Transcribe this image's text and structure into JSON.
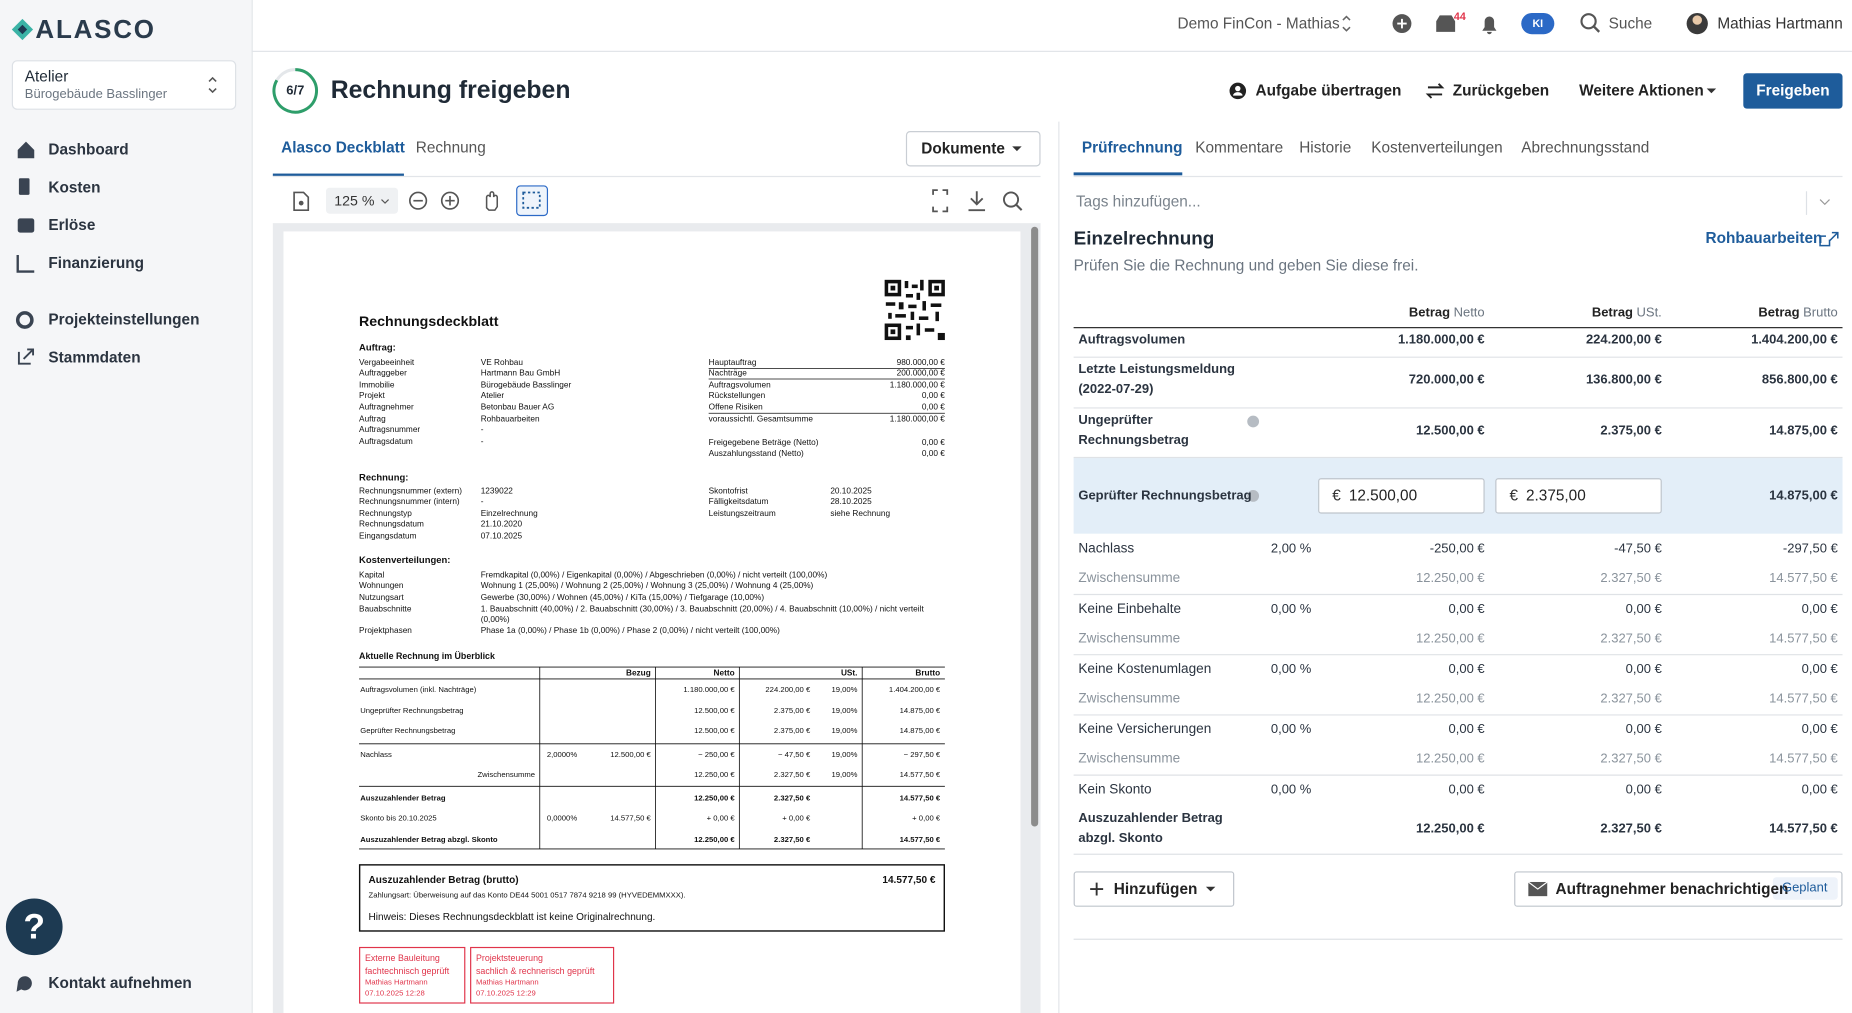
{
  "sidebar": {
    "logo": "ALASCO",
    "project": "Atelier",
    "property": "Bürogebäude Basslinger",
    "nav": [
      "Dashboard",
      "Kosten",
      "Erlöse",
      "Finanzierung",
      "Projekteinstellungen",
      "Stammdaten"
    ],
    "help": "?",
    "contact": "Kontakt aufnehmen"
  },
  "topbar": {
    "workspace": "Demo FinCon - Mathias",
    "notifications": "44",
    "ai": "KI",
    "search": "Suche",
    "user": "Mathias Hartmann"
  },
  "header": {
    "step": "6/7",
    "title": "Rechnung freigeben",
    "actions": [
      "Aufgabe übertragen",
      "Zurückgeben",
      "Weitere Aktionen"
    ],
    "primary": "Freigeben"
  },
  "viewer": {
    "tabs": [
      "Alasco Deckblatt",
      "Rechnung"
    ],
    "documents": "Dokumente",
    "zoom": "125 %"
  },
  "document": {
    "title": "Rechnungsdeckblatt",
    "order_heading": "Auftrag:",
    "order_left": [
      [
        "Vergabeeinheit",
        "VE Rohbau"
      ],
      [
        "Auftraggeber",
        "Hartmann Bau GmbH"
      ],
      [
        "Immobilie",
        "Bürogebäude Basslinger"
      ],
      [
        "Projekt",
        "Atelier"
      ],
      [
        "Auftragnehmer",
        "Betonbau Bauer AG"
      ],
      [
        "Auftrag",
        "Rohbauarbeiten"
      ],
      [
        "Auftragsnummer",
        "-"
      ],
      [
        "Auftragsdatum",
        "-"
      ]
    ],
    "order_right": [
      [
        "Hauptauftrag",
        "980.000,00 €"
      ],
      [
        "Nachträge",
        "200.000,00 €"
      ],
      [
        "Auftragsvolumen",
        "1.180.000,00 €"
      ],
      [
        "Rückstellungen",
        "0,00 €"
      ],
      [
        "Offene Risiken",
        "0,00 €"
      ],
      [
        "voraussichtl. Gesamtsumme",
        "1.180.000,00 €"
      ]
    ],
    "order_payments": [
      [
        "Freigegebene Beträge (Netto)",
        "0,00 €"
      ],
      [
        "Auszahlungsstand (Netto)",
        "0,00 €"
      ]
    ],
    "invoice_heading": "Rechnung:",
    "invoice_left": [
      [
        "Rechnungsnummer (extern)",
        "1239022"
      ],
      [
        "Rechnungsnummer (intern)",
        "-"
      ],
      [
        "Rechnungstyp",
        "Einzelrechnung"
      ],
      [
        "Rechnungsdatum",
        "21.10.2020"
      ],
      [
        "Eingangsdatum",
        "07.10.2025"
      ]
    ],
    "invoice_right": [
      [
        "Skontofrist",
        "20.10.2025"
      ],
      [
        "Fälligkeitsdatum",
        "28.10.2025"
      ],
      [
        "Leistungszeitraum",
        "siehe Rechnung"
      ]
    ],
    "distribution_heading": "Kostenverteilungen:",
    "distribution": [
      [
        "Kapital",
        "Fremdkapital (0,00%) / Eigenkapital (0,00%) / Abgeschrieben (0,00%) / nicht verteilt (100,00%)"
      ],
      [
        "Wohnungen",
        "Wohnung 1 (25,00%) / Wohnung 2 (25,00%) / Wohnung 3 (25,00%) / Wohnung 4 (25,00%)"
      ],
      [
        "Nutzungsart",
        "Gewerbe (30,00%) / Wohnen (45,00%) / KiTa (15,00%) / Tiefgarage (10,00%)"
      ],
      [
        "Bauabschnitte",
        "1. Bauabschnitt (40,00%) / 2. Bauabschnitt (30,00%) / 3. Bauabschnitt (20,00%) / 4. Bauabschnitt (10,00%) / nicht verteilt (0,00%)"
      ],
      [
        "Projektphasen",
        "Phase 1a (0,00%) / Phase 1b (0,00%) / Phase 2 (0,00%) / nicht verteilt (100,00%)"
      ]
    ],
    "overview_heading": "Aktuelle Rechnung im Überblick",
    "overview_columns": [
      "Bezug",
      "Netto",
      "USt.",
      "Brutto"
    ],
    "overview_rows": [
      [
        "Auftragsvolumen (inkl. Nachträge)",
        null,
        null,
        "1.180.000,00 €",
        "224.200,00 €",
        "19,00%",
        "1.404.200,00 €"
      ],
      [
        "Ungeprüfter Rechnungsbetrag",
        null,
        null,
        "12.500,00 €",
        "2.375,00 €",
        "19,00%",
        "14.875,00 €"
      ],
      [
        "Geprüfter Rechnungsbetrag",
        null,
        null,
        "12.500,00 €",
        "2.375,00 €",
        "19,00%",
        "14.875,00 €"
      ],
      [
        "Nachlass",
        "2,0000%",
        "12.500,00 €",
        "− 250,00 €",
        "− 47,50 €",
        "19,00%",
        "− 297,50 €"
      ],
      [
        "Zwischensumme",
        null,
        null,
        "12.250,00 €",
        "2.327,50 €",
        "19,00%",
        "14.577,50 €"
      ],
      [
        "Auszuzahlender Betrag",
        null,
        null,
        "12.250,00 €",
        "2.327,50 €",
        null,
        "14.577,50 €"
      ],
      [
        "Skonto bis 20.10.2025",
        "0,0000%",
        "14.577,50 €",
        "+ 0,00 €",
        "+ 0,00 €",
        null,
        "+ 0,00 €"
      ],
      [
        "Auszuzahlender Betrag abzgl. Skonto",
        null,
        null,
        "12.250,00 €",
        "2.327,50 €",
        null,
        "14.577,50 €"
      ]
    ],
    "payout": {
      "label": "Auszuzahlender Betrag (brutto)",
      "amount": "14.577,50 €",
      "method": "Zahlungsart: Überweisung auf das Konto DE44 5001 0517 7874 9218 99 (HYVEDEMMXXX).",
      "note": "Hinweis: Dieses Rechnungsdeckblatt ist keine Originalrechnung."
    },
    "stamps": [
      {
        "title": "Externe Bauleitung",
        "check": "fachtechnisch geprüft",
        "name": "Mathias Hartmann",
        "date": "07.10.2025 12:28"
      },
      {
        "title": "Projektsteuerung",
        "check": "sachlich & rechnerisch geprüft",
        "name": "Mathias Hartmann",
        "date": "07.10.2025 12:29"
      }
    ]
  },
  "review": {
    "tabs": [
      "Prüfrechnung",
      "Kommentare",
      "Historie",
      "Kostenverteilungen",
      "Abrechnungsstand"
    ],
    "tags_placeholder": "Tags hinzufügen...",
    "heading": "Einzelrechnung",
    "contract_link": "Rohbauarbeiten",
    "description": "Prüfen Sie die Rechnung und geben Sie diese frei.",
    "columns": [
      [
        "Betrag",
        "Netto"
      ],
      [
        "Betrag",
        "USt."
      ],
      [
        "Betrag",
        "Brutto"
      ]
    ],
    "rows": [
      {
        "label": "Auftragsvolumen",
        "net": "1.180.000,00 €",
        "vat": "224.200,00 €",
        "gross": "1.404.200,00 €"
      },
      {
        "label": "Letzte Leistungsmeldung (2022-07-29)",
        "net": "720.000,00 €",
        "vat": "136.800,00 €",
        "gross": "856.800,00 €"
      },
      {
        "label": "Ungeprüfter Rechnungsbetrag",
        "net": "12.500,00 €",
        "vat": "2.375,00 €",
        "gross": "14.875,00 €"
      },
      {
        "label": "Geprüfter Rechnungsbetrag",
        "currency": "€",
        "net": "12.500,00",
        "vat": "2.375,00",
        "gross": "14.875,00 €"
      },
      {
        "label": "Nachlass",
        "rate": "2,00 %",
        "net": "-250,00 €",
        "vat": "-47,50 €",
        "gross": "-297,50 €"
      },
      {
        "label": "Zwischensumme",
        "net": "12.250,00 €",
        "vat": "2.327,50 €",
        "gross": "14.577,50 €"
      },
      {
        "label": "Keine Einbehalte",
        "rate": "0,00 %",
        "net": "0,00 €",
        "vat": "0,00 €",
        "gross": "0,00 €"
      },
      {
        "label": "Zwischensumme",
        "net": "12.250,00 €",
        "vat": "2.327,50 €",
        "gross": "14.577,50 €"
      },
      {
        "label": "Keine Kostenumlagen",
        "rate": "0,00 %",
        "net": "0,00 €",
        "vat": "0,00 €",
        "gross": "0,00 €"
      },
      {
        "label": "Zwischensumme",
        "net": "12.250,00 €",
        "vat": "2.327,50 €",
        "gross": "14.577,50 €"
      },
      {
        "label": "Keine Versicherungen",
        "rate": "0,00 %",
        "net": "0,00 €",
        "vat": "0,00 €",
        "gross": "0,00 €"
      },
      {
        "label": "Zwischensumme",
        "net": "12.250,00 €",
        "vat": "2.327,50 €",
        "gross": "14.577,50 €"
      },
      {
        "label": "Kein Skonto",
        "rate": "0,00 %",
        "net": "0,00 €",
        "vat": "0,00 €",
        "gross": "0,00 €"
      },
      {
        "label": "Auszuzahlender Betrag abzgl. Skonto",
        "net": "12.250,00 €",
        "vat": "2.327,50 €",
        "gross": "14.577,50 €"
      }
    ],
    "add_button": "Hinzufügen",
    "notify_button": "Auftragnehmer benachrichtigen",
    "notify_status": "Geplant"
  }
}
